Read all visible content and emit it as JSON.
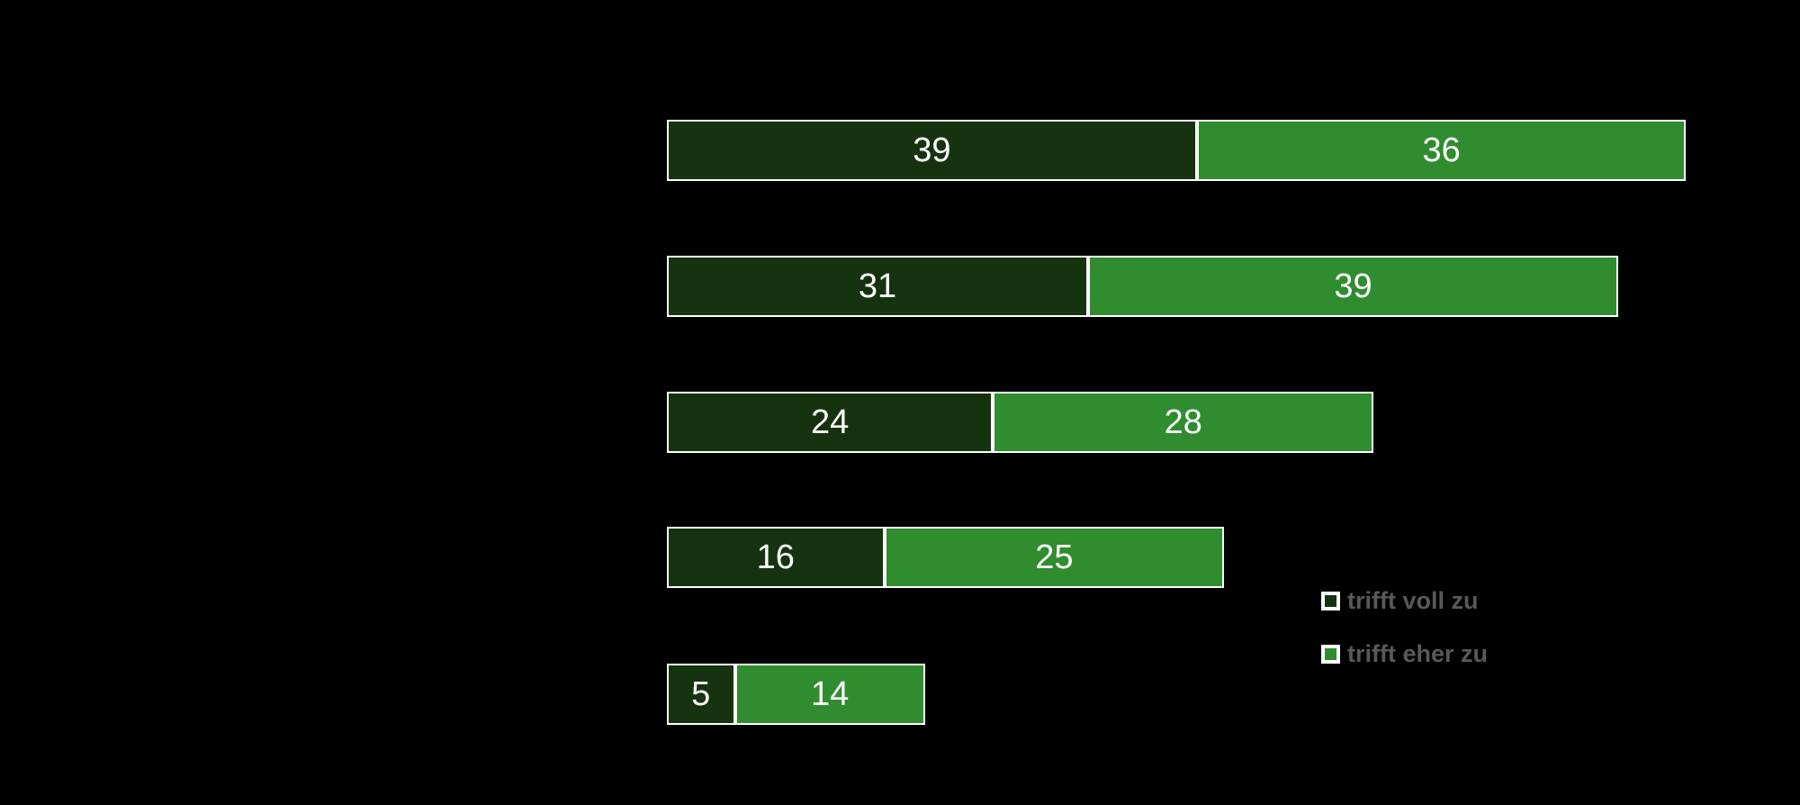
{
  "background_color": "#000000",
  "chart_data": {
    "type": "bar",
    "orientation": "horizontal",
    "stacked": true,
    "title": "",
    "xlabel": "",
    "ylabel": "",
    "categories": [
      "",
      "",
      "",
      "",
      ""
    ],
    "series": [
      {
        "name": "trifft voll zu",
        "color": "#163310",
        "values": [
          39,
          31,
          24,
          16,
          5
        ]
      },
      {
        "name": "trifft eher zu",
        "color": "#2f8c2f",
        "values": [
          36,
          39,
          28,
          25,
          14
        ]
      }
    ],
    "data_labels_shown": true,
    "data_label_color": "#ffffff",
    "bar_border_color": "#ffffff",
    "grid": "off",
    "axes_shown": false,
    "legend": {
      "position": "right",
      "text_color": "#595959",
      "items": [
        {
          "label": "trifft voll zu",
          "color": "#163310"
        },
        {
          "label": "trifft eher zu",
          "color": "#2f8c2f"
        }
      ]
    }
  }
}
